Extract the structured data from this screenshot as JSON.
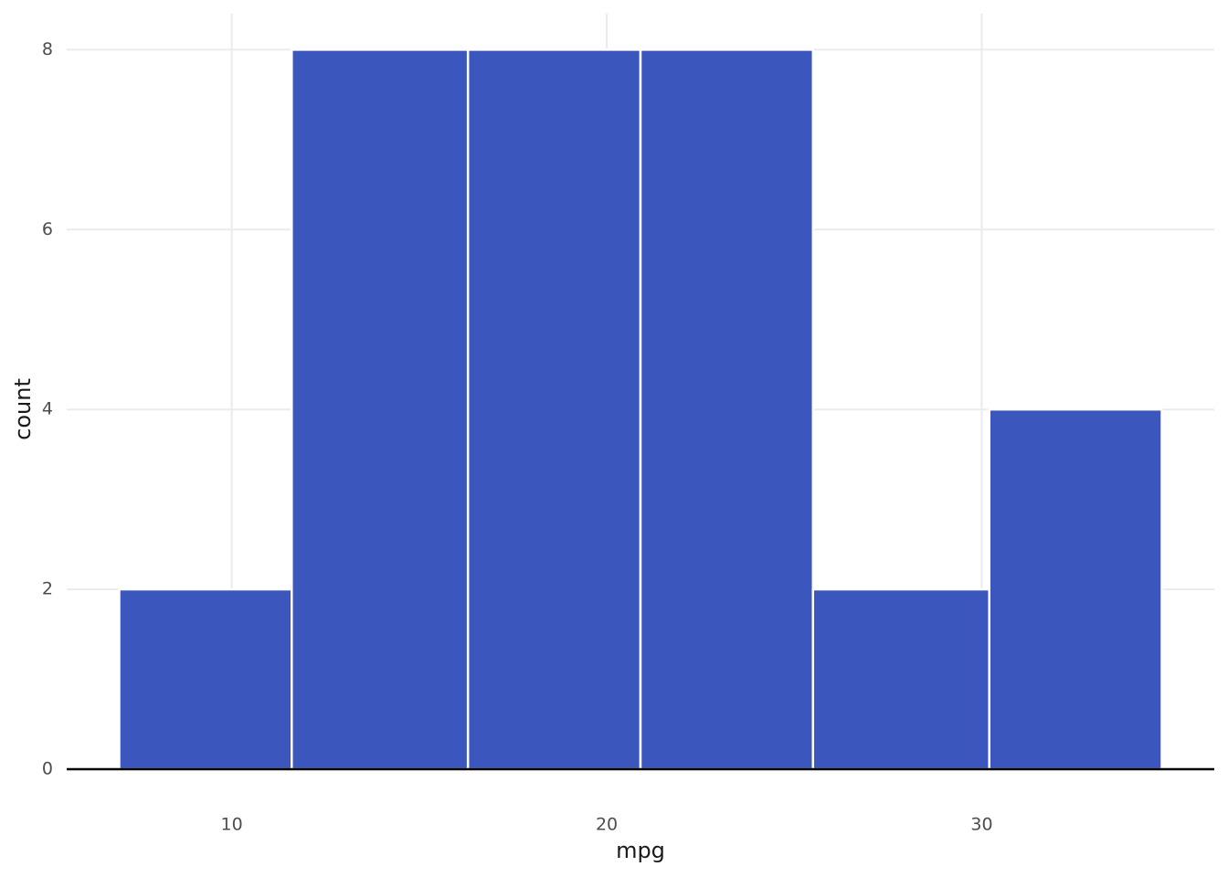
{
  "chart_data": {
    "type": "histogram",
    "xlabel": "mpg",
    "ylabel": "count",
    "bins": [
      7.0,
      11.6,
      16.3,
      20.9,
      25.5,
      30.2,
      34.8
    ],
    "values": [
      2,
      8,
      8,
      8,
      2,
      4
    ],
    "color": "#3b57bd",
    "xlim": [
      5.6,
      36.2
    ],
    "ylim": [
      0,
      8.4
    ],
    "xticks": [
      10,
      20,
      30
    ],
    "yticks": [
      0,
      2,
      4,
      6,
      8
    ],
    "grid": true
  }
}
